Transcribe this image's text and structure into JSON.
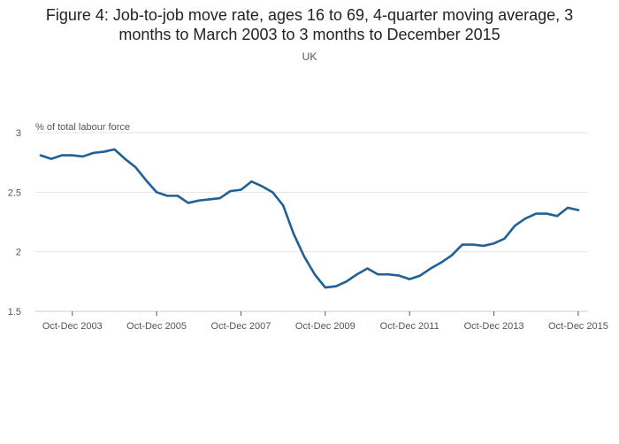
{
  "chart_data": {
    "type": "line",
    "title_line1": "Figure 4: Job-to-job move rate, ages 16 to 69, 4-quarter moving average, 3",
    "title_line2": "months to March 2003 to 3 months to December 2015",
    "subtitle": "UK",
    "ylabel": "% of total labour force",
    "ylim": [
      1.5,
      3
    ],
    "yticks": [
      "1.5",
      "2",
      "2.5",
      "3"
    ],
    "xtick_labels": [
      "Oct-Dec 2003",
      "Oct-Dec 2005",
      "Oct-Dec 2007",
      "Oct-Dec 2009",
      "Oct-Dec 2011",
      "Oct-Dec 2013",
      "Oct-Dec 2015"
    ],
    "grid": true,
    "color": "#206095",
    "series": [
      {
        "x": [
          "Jan-Mar 2003",
          "Apr-Jun 2003",
          "Jul-Sep 2003",
          "Oct-Dec 2003",
          "Jan-Mar 2004",
          "Apr-Jun 2004",
          "Jul-Sep 2004",
          "Oct-Dec 2004",
          "Jan-Mar 2005",
          "Apr-Jun 2005",
          "Jul-Sep 2005",
          "Oct-Dec 2005",
          "Jan-Mar 2006",
          "Apr-Jun 2006",
          "Jul-Sep 2006",
          "Oct-Dec 2006",
          "Jan-Mar 2007",
          "Apr-Jun 2007",
          "Jul-Sep 2007",
          "Oct-Dec 2007",
          "Jan-Mar 2008",
          "Apr-Jun 2008",
          "Jul-Sep 2008",
          "Oct-Dec 2008",
          "Jan-Mar 2009",
          "Apr-Jun 2009",
          "Jul-Sep 2009",
          "Oct-Dec 2009",
          "Jan-Mar 2010",
          "Apr-Jun 2010",
          "Jul-Sep 2010",
          "Oct-Dec 2010",
          "Jan-Mar 2011",
          "Apr-Jun 2011",
          "Jul-Sep 2011",
          "Oct-Dec 2011",
          "Jan-Mar 2012",
          "Apr-Jun 2012",
          "Jul-Sep 2012",
          "Oct-Dec 2012",
          "Jan-Mar 2013",
          "Apr-Jun 2013",
          "Jul-Sep 2013",
          "Oct-Dec 2013",
          "Jan-Mar 2014",
          "Apr-Jun 2014",
          "Jul-Sep 2014",
          "Oct-Dec 2014",
          "Jan-Mar 2015",
          "Apr-Jun 2015",
          "Jul-Sep 2015",
          "Oct-Dec 2015"
        ],
        "values": [
          2.81,
          2.78,
          2.81,
          2.81,
          2.8,
          2.83,
          2.84,
          2.86,
          2.78,
          2.71,
          2.6,
          2.5,
          2.47,
          2.47,
          2.41,
          2.43,
          2.44,
          2.45,
          2.51,
          2.52,
          2.59,
          2.55,
          2.5,
          2.39,
          2.15,
          1.96,
          1.81,
          1.7,
          1.71,
          1.75,
          1.81,
          1.86,
          1.81,
          1.81,
          1.8,
          1.77,
          1.8,
          1.86,
          1.91,
          1.97,
          2.06,
          2.06,
          2.05,
          2.07,
          2.11,
          2.22,
          2.28,
          2.32,
          2.32,
          2.3,
          2.37,
          2.35
        ]
      }
    ]
  }
}
